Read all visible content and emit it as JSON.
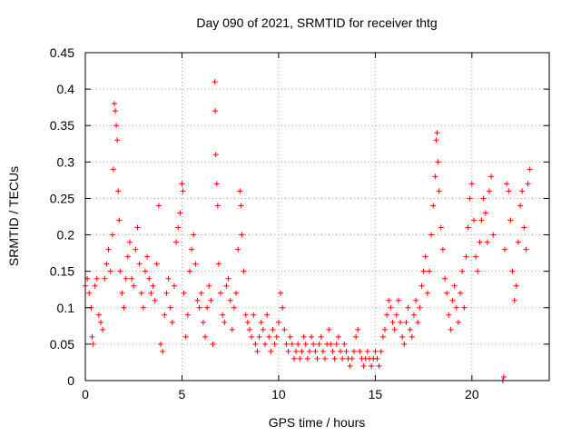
{
  "chart_data": {
    "type": "scatter",
    "title": "Day 090 of 2021, SRMTID for receiver thtg",
    "xlabel": "GPS time / hours",
    "ylabel": "SRMTID / TECUs",
    "xlim": [
      0,
      24
    ],
    "ylim": [
      0,
      0.45
    ],
    "xticks": [
      0,
      5,
      10,
      15,
      20
    ],
    "xtick_labels": [
      "0",
      "5",
      "10",
      "15",
      "20"
    ],
    "yticks": [
      0,
      0.05,
      0.1,
      0.15,
      0.2,
      0.25,
      0.3,
      0.35,
      0.4,
      0.45
    ],
    "ytick_labels": [
      "0",
      "0.05",
      "0.1",
      "0.15",
      "0.2",
      "0.25",
      "0.3",
      "0.35",
      "0.4",
      "0.45"
    ],
    "grid": true,
    "marker": "+",
    "marker_color": "#ff0000",
    "series": [
      {
        "name": "SRMTID",
        "color": "#ff0000",
        "points": [
          [
            0.0,
            0.13
          ],
          [
            0.1,
            0.14
          ],
          [
            0.2,
            0.12
          ],
          [
            0.3,
            0.1
          ],
          [
            0.35,
            0.06
          ],
          [
            0.4,
            0.05
          ],
          [
            0.5,
            0.13
          ],
          [
            0.6,
            0.14
          ],
          [
            0.7,
            0.09
          ],
          [
            0.8,
            0.08
          ],
          [
            0.9,
            0.07
          ],
          [
            1.0,
            0.14
          ],
          [
            1.1,
            0.16
          ],
          [
            1.2,
            0.18
          ],
          [
            1.3,
            0.15
          ],
          [
            1.4,
            0.2
          ],
          [
            1.45,
            0.29
          ],
          [
            1.5,
            0.38
          ],
          [
            1.55,
            0.37
          ],
          [
            1.6,
            0.35
          ],
          [
            1.65,
            0.33
          ],
          [
            1.7,
            0.26
          ],
          [
            1.75,
            0.22
          ],
          [
            1.8,
            0.15
          ],
          [
            1.9,
            0.12
          ],
          [
            2.0,
            0.1
          ],
          [
            2.1,
            0.14
          ],
          [
            2.2,
            0.17
          ],
          [
            2.3,
            0.19
          ],
          [
            2.4,
            0.14
          ],
          [
            2.5,
            0.13
          ],
          [
            2.6,
            0.18
          ],
          [
            2.7,
            0.21
          ],
          [
            2.8,
            0.16
          ],
          [
            2.9,
            0.12
          ],
          [
            3.0,
            0.1
          ],
          [
            3.1,
            0.15
          ],
          [
            3.2,
            0.17
          ],
          [
            3.3,
            0.14
          ],
          [
            3.4,
            0.12
          ],
          [
            3.5,
            0.13
          ],
          [
            3.6,
            0.11
          ],
          [
            3.7,
            0.16
          ],
          [
            3.8,
            0.24
          ],
          [
            3.9,
            0.05
          ],
          [
            4.0,
            0.04
          ],
          [
            4.1,
            0.09
          ],
          [
            4.2,
            0.12
          ],
          [
            4.3,
            0.14
          ],
          [
            4.4,
            0.1
          ],
          [
            4.5,
            0.08
          ],
          [
            4.6,
            0.13
          ],
          [
            4.7,
            0.19
          ],
          [
            4.8,
            0.21
          ],
          [
            4.9,
            0.23
          ],
          [
            5.0,
            0.27
          ],
          [
            5.05,
            0.26
          ],
          [
            5.1,
            0.12
          ],
          [
            5.2,
            0.06
          ],
          [
            5.3,
            0.09
          ],
          [
            5.4,
            0.15
          ],
          [
            5.5,
            0.18
          ],
          [
            5.6,
            0.2
          ],
          [
            5.7,
            0.16
          ],
          [
            5.8,
            0.11
          ],
          [
            5.9,
            0.1
          ],
          [
            6.0,
            0.12
          ],
          [
            6.1,
            0.08
          ],
          [
            6.2,
            0.06
          ],
          [
            6.3,
            0.1
          ],
          [
            6.4,
            0.13
          ],
          [
            6.5,
            0.11
          ],
          [
            6.6,
            0.05
          ],
          [
            6.7,
            0.41
          ],
          [
            6.72,
            0.37
          ],
          [
            6.75,
            0.31
          ],
          [
            6.8,
            0.27
          ],
          [
            6.85,
            0.24
          ],
          [
            6.9,
            0.16
          ],
          [
            7.0,
            0.12
          ],
          [
            7.1,
            0.09
          ],
          [
            7.2,
            0.08
          ],
          [
            7.3,
            0.13
          ],
          [
            7.4,
            0.14
          ],
          [
            7.5,
            0.11
          ],
          [
            7.6,
            0.07
          ],
          [
            7.7,
            0.1
          ],
          [
            7.8,
            0.12
          ],
          [
            7.9,
            0.18
          ],
          [
            8.0,
            0.26
          ],
          [
            8.05,
            0.24
          ],
          [
            8.1,
            0.2
          ],
          [
            8.2,
            0.15
          ],
          [
            8.3,
            0.09
          ],
          [
            8.4,
            0.08
          ],
          [
            8.5,
            0.07
          ],
          [
            8.6,
            0.06
          ],
          [
            8.7,
            0.09
          ],
          [
            8.8,
            0.05
          ],
          [
            8.9,
            0.04
          ],
          [
            9.0,
            0.06
          ],
          [
            9.1,
            0.08
          ],
          [
            9.2,
            0.07
          ],
          [
            9.3,
            0.05
          ],
          [
            9.4,
            0.09
          ],
          [
            9.5,
            0.06
          ],
          [
            9.6,
            0.04
          ],
          [
            9.7,
            0.07
          ],
          [
            9.8,
            0.05
          ],
          [
            9.9,
            0.06
          ],
          [
            10.0,
            0.08
          ],
          [
            10.1,
            0.12
          ],
          [
            10.2,
            0.1
          ],
          [
            10.3,
            0.07
          ],
          [
            10.4,
            0.05
          ],
          [
            10.5,
            0.04
          ],
          [
            10.6,
            0.06
          ],
          [
            10.7,
            0.05
          ],
          [
            10.8,
            0.03
          ],
          [
            10.9,
            0.04
          ],
          [
            11.0,
            0.05
          ],
          [
            11.1,
            0.03
          ],
          [
            11.2,
            0.04
          ],
          [
            11.3,
            0.06
          ],
          [
            11.4,
            0.05
          ],
          [
            11.5,
            0.03
          ],
          [
            11.6,
            0.04
          ],
          [
            11.7,
            0.06
          ],
          [
            11.8,
            0.05
          ],
          [
            11.9,
            0.04
          ],
          [
            12.0,
            0.03
          ],
          [
            12.1,
            0.05
          ],
          [
            12.2,
            0.06
          ],
          [
            12.3,
            0.04
          ],
          [
            12.4,
            0.03
          ],
          [
            12.5,
            0.05
          ],
          [
            12.6,
            0.07
          ],
          [
            12.7,
            0.05
          ],
          [
            12.8,
            0.04
          ],
          [
            12.9,
            0.03
          ],
          [
            13.0,
            0.05
          ],
          [
            13.1,
            0.06
          ],
          [
            13.2,
            0.04
          ],
          [
            13.3,
            0.03
          ],
          [
            13.4,
            0.05
          ],
          [
            13.5,
            0.04
          ],
          [
            13.6,
            0.03
          ],
          [
            13.7,
            0.02
          ],
          [
            13.8,
            0.03
          ],
          [
            13.9,
            0.04
          ],
          [
            14.0,
            0.06
          ],
          [
            14.1,
            0.07
          ],
          [
            14.2,
            0.04
          ],
          [
            14.3,
            0.03
          ],
          [
            14.4,
            0.02
          ],
          [
            14.5,
            0.03
          ],
          [
            14.6,
            0.04
          ],
          [
            14.7,
            0.03
          ],
          [
            14.8,
            0.02
          ],
          [
            14.9,
            0.03
          ],
          [
            15.0,
            0.04
          ],
          [
            15.1,
            0.03
          ],
          [
            15.2,
            0.02
          ],
          [
            15.3,
            0.04
          ],
          [
            15.4,
            0.06
          ],
          [
            15.5,
            0.07
          ],
          [
            15.6,
            0.09
          ],
          [
            15.7,
            0.11
          ],
          [
            15.8,
            0.1
          ],
          [
            15.9,
            0.08
          ],
          [
            16.0,
            0.07
          ],
          [
            16.1,
            0.09
          ],
          [
            16.2,
            0.11
          ],
          [
            16.3,
            0.08
          ],
          [
            16.4,
            0.06
          ],
          [
            16.5,
            0.05
          ],
          [
            16.6,
            0.08
          ],
          [
            16.7,
            0.1
          ],
          [
            16.8,
            0.07
          ],
          [
            16.9,
            0.06
          ],
          [
            17.0,
            0.09
          ],
          [
            17.1,
            0.11
          ],
          [
            17.2,
            0.08
          ],
          [
            17.3,
            0.1
          ],
          [
            17.4,
            0.13
          ],
          [
            17.5,
            0.15
          ],
          [
            17.6,
            0.17
          ],
          [
            17.7,
            0.12
          ],
          [
            17.8,
            0.15
          ],
          [
            17.9,
            0.2
          ],
          [
            18.0,
            0.24
          ],
          [
            18.1,
            0.28
          ],
          [
            18.15,
            0.33
          ],
          [
            18.2,
            0.34
          ],
          [
            18.25,
            0.3
          ],
          [
            18.3,
            0.26
          ],
          [
            18.4,
            0.21
          ],
          [
            18.5,
            0.18
          ],
          [
            18.6,
            0.14
          ],
          [
            18.7,
            0.12
          ],
          [
            18.8,
            0.09
          ],
          [
            18.9,
            0.07
          ],
          [
            19.0,
            0.11
          ],
          [
            19.1,
            0.13
          ],
          [
            19.2,
            0.1
          ],
          [
            19.3,
            0.08
          ],
          [
            19.4,
            0.12
          ],
          [
            19.5,
            0.15
          ],
          [
            19.6,
            0.1
          ],
          [
            19.7,
            0.17
          ],
          [
            19.8,
            0.21
          ],
          [
            19.9,
            0.25
          ],
          [
            20.0,
            0.27
          ],
          [
            20.1,
            0.22
          ],
          [
            20.2,
            0.17
          ],
          [
            20.3,
            0.15
          ],
          [
            20.4,
            0.19
          ],
          [
            20.5,
            0.22
          ],
          [
            20.6,
            0.25
          ],
          [
            20.7,
            0.23
          ],
          [
            20.8,
            0.19
          ],
          [
            20.9,
            0.26
          ],
          [
            21.0,
            0.28
          ],
          [
            21.1,
            0.2
          ],
          [
            21.6,
            0.0
          ],
          [
            21.65,
            0.005
          ],
          [
            21.7,
            0.18
          ],
          [
            21.8,
            0.27
          ],
          [
            21.9,
            0.26
          ],
          [
            22.0,
            0.22
          ],
          [
            22.1,
            0.15
          ],
          [
            22.2,
            0.11
          ],
          [
            22.3,
            0.13
          ],
          [
            22.4,
            0.19
          ],
          [
            22.5,
            0.24
          ],
          [
            22.6,
            0.26
          ],
          [
            22.7,
            0.21
          ],
          [
            22.8,
            0.18
          ],
          [
            22.9,
            0.27
          ],
          [
            23.0,
            0.29
          ]
        ]
      }
    ]
  }
}
